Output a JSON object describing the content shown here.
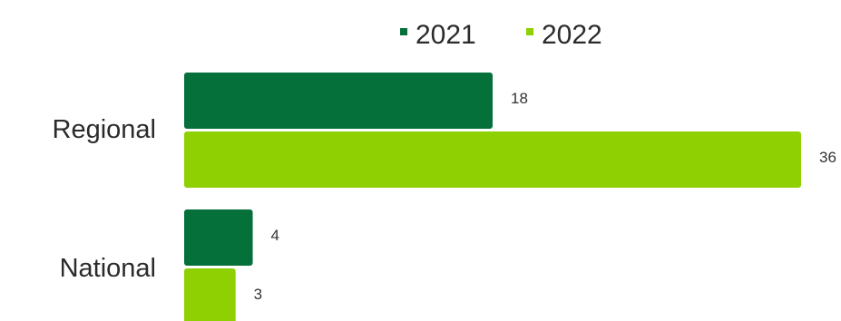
{
  "chart_data": {
    "type": "bar",
    "orientation": "horizontal",
    "categories": [
      "Regional",
      "National"
    ],
    "series": [
      {
        "name": "2021",
        "color": "#05703a",
        "values": [
          18,
          4
        ]
      },
      {
        "name": "2022",
        "color": "#8fd003",
        "values": [
          36,
          3
        ]
      }
    ],
    "data_labels": true,
    "legend_position": "top",
    "grid": false,
    "xlim": [
      0,
      36
    ]
  }
}
